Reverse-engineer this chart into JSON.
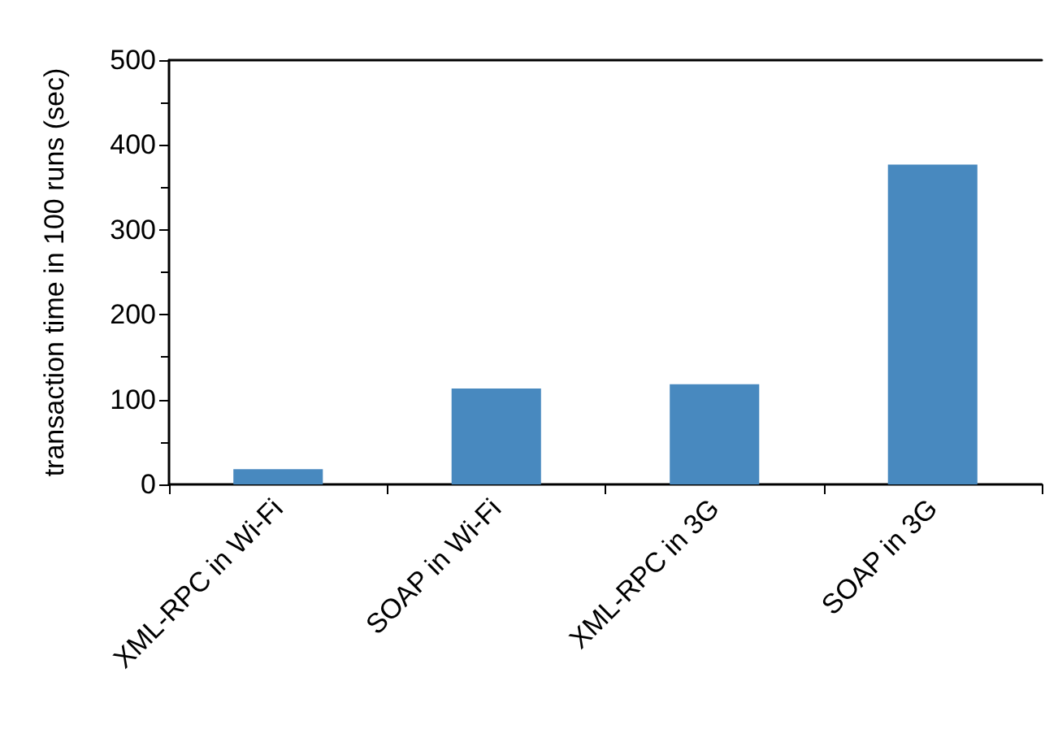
{
  "chart_data": {
    "type": "bar",
    "ylabel": "transaction time in 100 runs (sec)",
    "categories": [
      "XML-RPC in Wi-Fi",
      "SOAP in Wi-Fi",
      "XML-RPC in 3G",
      "SOAP in 3G"
    ],
    "values": [
      18,
      113,
      118,
      377
    ],
    "color": "#4889bf",
    "ylim": [
      0,
      500
    ],
    "yticks": [
      0,
      100,
      200,
      300,
      400,
      500
    ]
  }
}
